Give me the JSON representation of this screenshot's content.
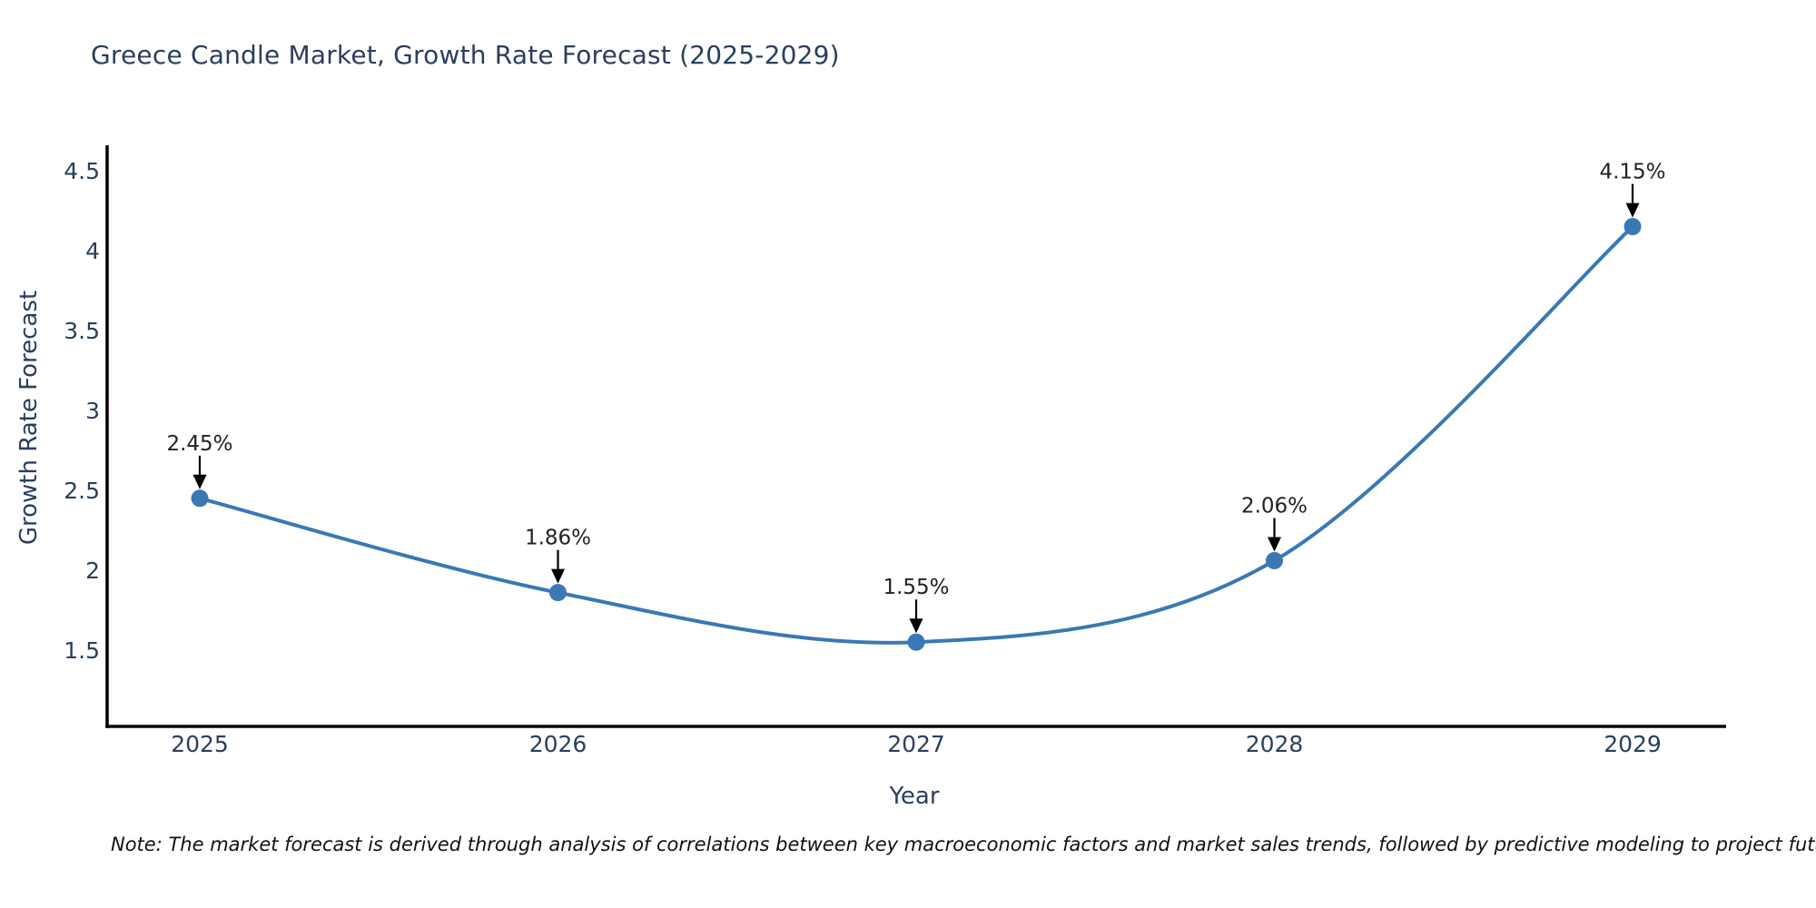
{
  "title": "Greece Candle Market, Growth Rate Forecast (2025-2029)",
  "note": "Note: The market forecast is derived through analysis of correlations between key macroeconomic factors and market sales trends, followed by predictive modeling to project future sales",
  "chart_data": {
    "type": "line",
    "line_shape": "spline",
    "title": "Greece Candle Market, Growth Rate Forecast (2025-2029)",
    "xlabel": "Year",
    "ylabel": "Growth Rate Forecast",
    "categories": [
      2025,
      2026,
      2027,
      2028,
      2029
    ],
    "series": [
      {
        "name": "Growth Rate Forecast",
        "values": [
          2.45,
          1.86,
          1.55,
          2.06,
          4.15
        ]
      }
    ],
    "point_labels": [
      "2.45%",
      "1.86%",
      "1.55%",
      "2.06%",
      "4.15%"
    ],
    "yticks": [
      4.5,
      4,
      3.5,
      3,
      2.5,
      2,
      1.5
    ],
    "ylim": [
      1.03,
      4.66
    ],
    "grid": false,
    "legend_position": "none",
    "annotation_style": "value labels with down arrows above each point",
    "colors": {
      "line": "#3a78b5",
      "marker": "#3a78b5",
      "axis": "#000000",
      "axis_text": "#2a3f5f",
      "title_text": "#2a3f5f",
      "annotation_text": "#222222",
      "annotation_arrow": "#000000",
      "note_text": "#111111",
      "background": "#ffffff"
    }
  }
}
